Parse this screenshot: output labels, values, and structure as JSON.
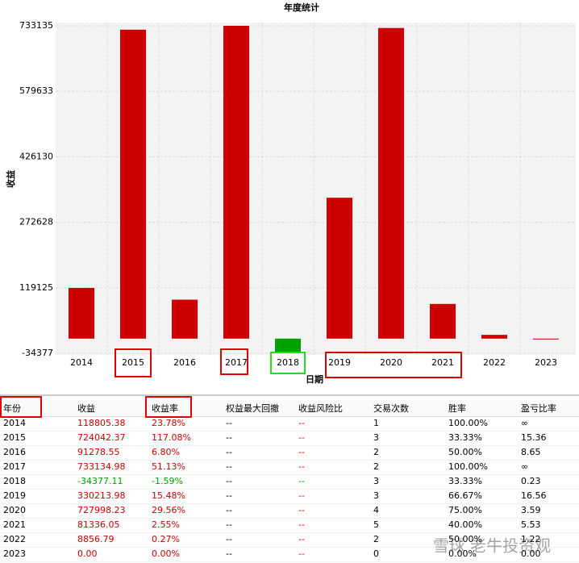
{
  "chart_data": {
    "type": "bar",
    "title": "年度统计",
    "x_label": "日期",
    "y_label": "收益",
    "categories": [
      "2014",
      "2015",
      "2016",
      "2017",
      "2018",
      "2019",
      "2020",
      "2021",
      "2022",
      "2023"
    ],
    "values": [
      118805.38,
      724042.37,
      91278.55,
      733134.98,
      -34377.11,
      330213.98,
      727998.23,
      81336.05,
      8856.79,
      0
    ],
    "color": "#cc0000",
    "negative_color": "#00a000",
    "ylim": [
      -34377,
      733135
    ],
    "yticks": [
      -34377,
      119125,
      272628,
      426130,
      579633,
      733135
    ],
    "grid": true
  },
  "table": {
    "header": [
      "年份",
      "收益",
      "收益率",
      "权益最大回撤",
      "收益风险比",
      "交易次数",
      "胜率",
      "盈亏比率"
    ],
    "rows": [
      [
        "2014",
        "118805.38",
        "23.78%",
        "--",
        "--",
        "1",
        "100.00%",
        "∞"
      ],
      [
        "2015",
        "724042.37",
        "117.08%",
        "--",
        "--",
        "3",
        "33.33%",
        "15.36"
      ],
      [
        "2016",
        "91278.55",
        "6.80%",
        "--",
        "--",
        "2",
        "50.00%",
        "8.65"
      ],
      [
        "2017",
        "733134.98",
        "51.13%",
        "--",
        "--",
        "2",
        "100.00%",
        "∞"
      ],
      [
        "2018",
        "-34377.11",
        "-1.59%",
        "--",
        "--",
        "3",
        "33.33%",
        "0.23"
      ],
      [
        "2019",
        "330213.98",
        "15.48%",
        "--",
        "--",
        "3",
        "66.67%",
        "16.56"
      ],
      [
        "2020",
        "727998.23",
        "29.56%",
        "--",
        "--",
        "4",
        "75.00%",
        "3.59"
      ],
      [
        "2021",
        "81336.05",
        "2.55%",
        "--",
        "--",
        "5",
        "40.00%",
        "5.53"
      ],
      [
        "2022",
        "8856.79",
        "0.27%",
        "--",
        "--",
        "2",
        "50.00%",
        "1.22"
      ],
      [
        "2023",
        "0.00",
        "0.00%",
        "--",
        "--",
        "0",
        "0.00%",
        "0.00"
      ]
    ]
  },
  "watermark": "雪球 老牛投资观"
}
